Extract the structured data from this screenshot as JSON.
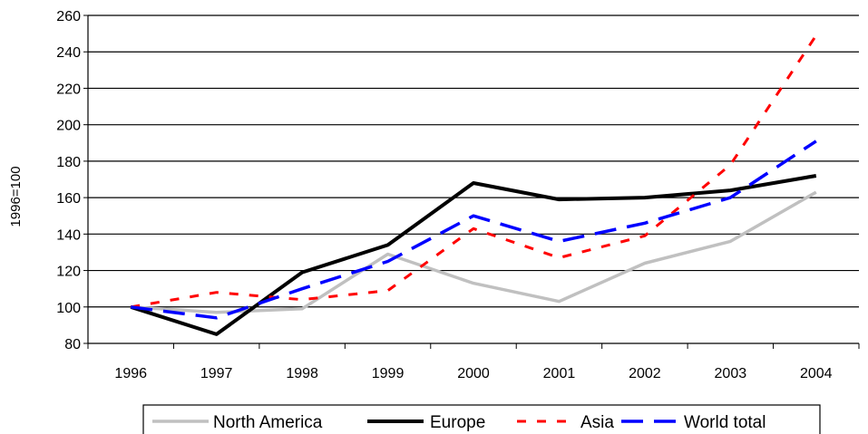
{
  "chart_data": {
    "type": "line",
    "title": "",
    "xlabel": "",
    "ylabel": "1996=100",
    "ylim": [
      80,
      260
    ],
    "yticks": [
      80,
      100,
      120,
      140,
      160,
      180,
      200,
      220,
      240,
      260
    ],
    "categories": [
      "1996",
      "1997",
      "1998",
      "1999",
      "2000",
      "2001",
      "2002",
      "2003",
      "2004"
    ],
    "grid": "horizontal",
    "legend": "bottom",
    "series": [
      {
        "name": "North America",
        "color": "#c0c0c0",
        "style": "solid",
        "values": [
          100,
          97,
          99,
          129,
          113,
          103,
          124,
          136,
          163
        ]
      },
      {
        "name": "Europe",
        "color": "#000000",
        "style": "solid",
        "values": [
          100,
          85,
          119,
          134,
          168,
          159,
          160,
          164,
          172
        ]
      },
      {
        "name": "Asia",
        "color": "#ff0000",
        "style": "dashed",
        "values": [
          100,
          108,
          104,
          109,
          143,
          127,
          139,
          178,
          249
        ]
      },
      {
        "name": "World total",
        "color": "#0000ff",
        "style": "long-dashed",
        "values": [
          100,
          94,
          110,
          125,
          150,
          136,
          146,
          160,
          191
        ]
      }
    ]
  }
}
